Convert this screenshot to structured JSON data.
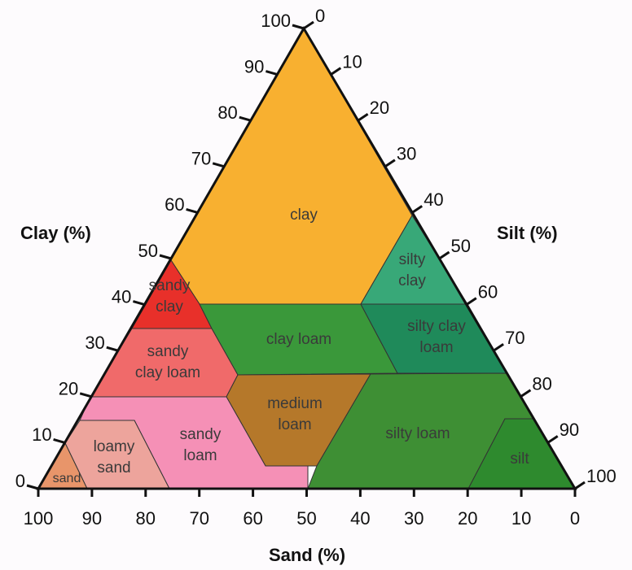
{
  "axes": {
    "clay": {
      "title": "Clay (%)",
      "ticks": [
        0,
        10,
        20,
        30,
        40,
        50,
        60,
        70,
        80,
        90,
        100
      ]
    },
    "silt": {
      "title": "Silt (%)",
      "ticks": [
        0,
        10,
        20,
        30,
        40,
        50,
        60,
        70,
        80,
        90,
        100
      ]
    },
    "sand": {
      "title": "Sand (%)",
      "ticks": [
        100,
        90,
        80,
        70,
        60,
        50,
        40,
        30,
        20,
        10,
        0
      ]
    }
  },
  "regions": [
    {
      "lines": [
        "clay"
      ]
    },
    {
      "lines": [
        "sandy",
        "clay"
      ]
    },
    {
      "lines": [
        "silty",
        "clay"
      ]
    },
    {
      "lines": [
        "sandy",
        "clay loam"
      ]
    },
    {
      "lines": [
        "clay loam"
      ]
    },
    {
      "lines": [
        "silty clay",
        "loam"
      ]
    },
    {
      "lines": [
        "medium",
        "loam"
      ]
    },
    {
      "lines": [
        "silty loam"
      ]
    },
    {
      "lines": [
        "sandy",
        "loam"
      ]
    },
    {
      "lines": [
        "loamy",
        "sand"
      ]
    },
    {
      "lines": [
        "sand"
      ]
    },
    {
      "lines": [
        "silt"
      ]
    }
  ]
}
